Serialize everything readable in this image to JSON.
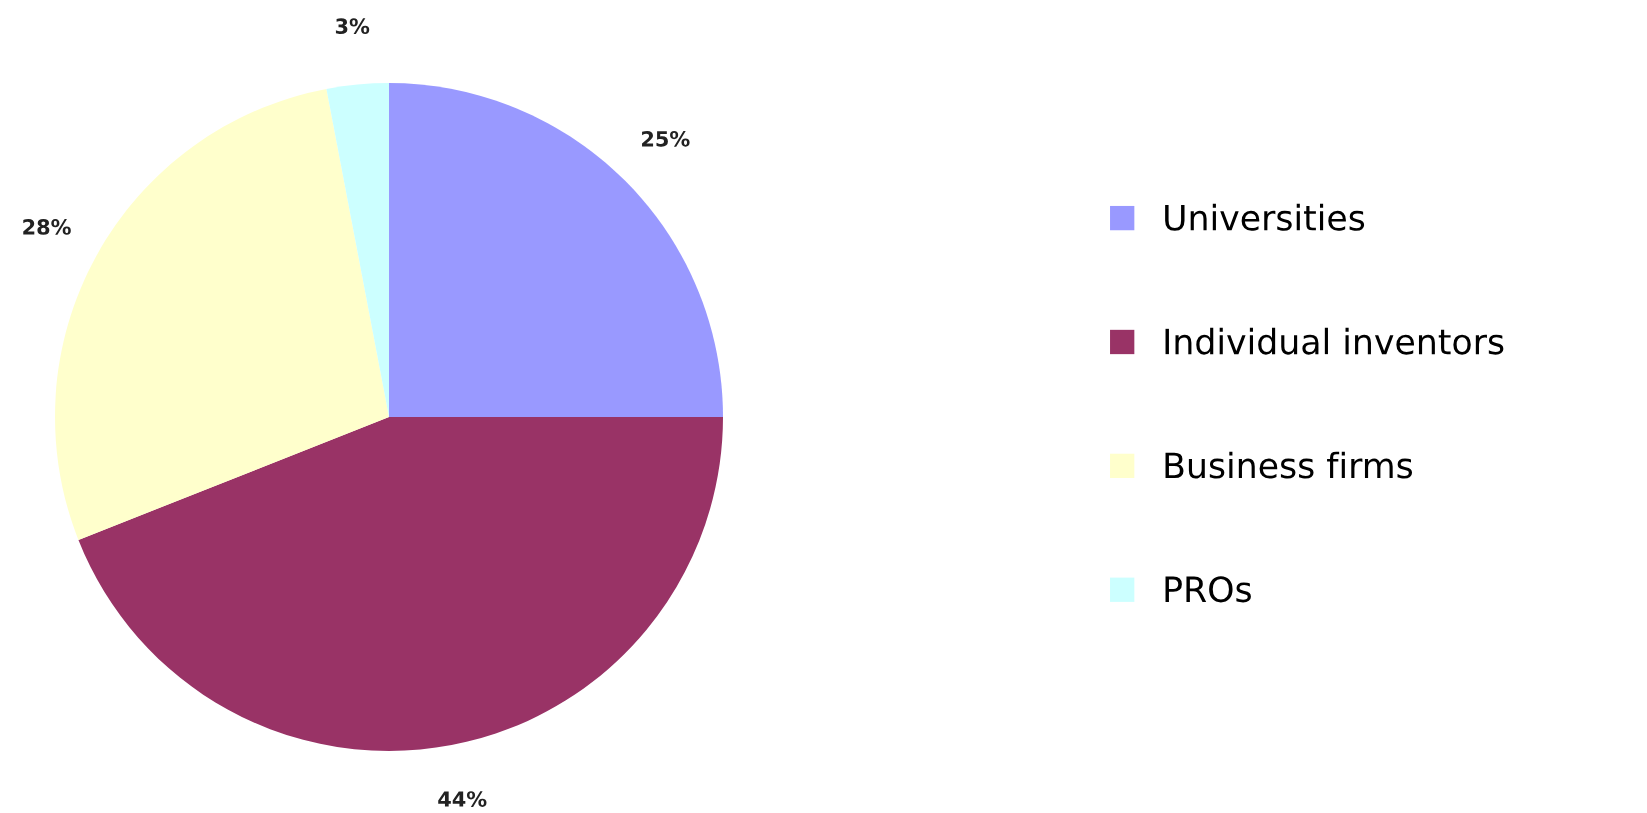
{
  "chart_data": {
    "type": "pie",
    "categories": [
      "Universities",
      "Individual inventors",
      "Business firms",
      "PROs"
    ],
    "values": [
      25,
      44,
      28,
      3
    ],
    "colors": [
      "#9999ff",
      "#993366",
      "#ffffcc",
      "#ccffff"
    ],
    "value_labels": [
      "25%",
      "44%",
      "28%",
      "3%"
    ],
    "legend": "right"
  }
}
